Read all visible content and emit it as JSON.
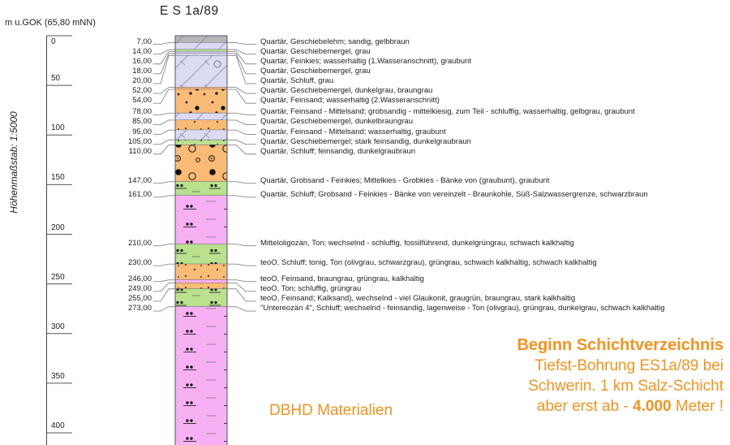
{
  "title": "E S 1a/89",
  "axis": {
    "top_label": "m u.GOK (65,80 mNN)",
    "scale_label": "Höhenmaßstab: 1:5000",
    "ticks": [
      "0",
      "50",
      "100",
      "150",
      "200",
      "250",
      "300",
      "350",
      "400"
    ],
    "tick_interval_m": 50
  },
  "colors": {
    "accent": "#F5921E",
    "gray": "#b6b6b6",
    "lavender": "#dbdbf2",
    "green": "#b9e18e",
    "orange": "#f9bb76",
    "pink": "#f8b0f4",
    "line": "#55556a",
    "leader": "#888888"
  },
  "column": {
    "layers": [
      {
        "from": 0,
        "to": 7,
        "depth_label": "7,00",
        "color": "gray",
        "pattern": "diagGray",
        "description": "Quartär, Geschiebelehm; sandig, gelbbraun"
      },
      {
        "from": 7,
        "to": 14,
        "depth_label": "14,00",
        "color": "lavender",
        "pattern": "diagLav",
        "description": "Quartär, Geschiebemergel, grau"
      },
      {
        "from": 14,
        "to": 16,
        "depth_label": "16,00",
        "color": "green",
        "pattern": "",
        "description": "Quartär, Feinkies; wasserhaltig (1.Wasseranschnitt), graubunt"
      },
      {
        "from": 16,
        "to": 18,
        "depth_label": "18,00",
        "color": "lavender",
        "pattern": "",
        "description": "Quartär, Geschiebemergel, grau"
      },
      {
        "from": 18,
        "to": 20,
        "depth_label": "20,00",
        "color": "lavender",
        "pattern": "",
        "description": "Quartär, Schluff, grau"
      },
      {
        "from": 20,
        "to": 52,
        "depth_label": "52,00",
        "color": "lavender",
        "pattern": "diagLav",
        "description": "Quartär, Geschiebemergel, dunkelgrau, braungrau"
      },
      {
        "from": 52,
        "to": 54,
        "depth_label": "54,00",
        "color": "orange",
        "pattern": "",
        "description": "Quartär, Feinsand; wasserhaltig (2.Wasseranschnitt)"
      },
      {
        "from": 54,
        "to": 78,
        "depth_label": "78,00",
        "color": "orange",
        "pattern": "dotsOrange",
        "description": "Quartär, Feinsand - Mittelsand; grobsandig - mittelkiesig, zum Teil - schluffig, wasserhaltig, gelbgrau, graubunt"
      },
      {
        "from": 78,
        "to": 85,
        "depth_label": "85,00",
        "color": "lavender",
        "pattern": "diagLav",
        "description": "Quartär, Geschiebemergel, dunkelbraungrau"
      },
      {
        "from": 85,
        "to": 95,
        "depth_label": "95,00",
        "color": "orange",
        "pattern": "dotsTiny",
        "description": "Quartär, Feinsand - Mittelsand; wasserhaltig, graubunt"
      },
      {
        "from": 95,
        "to": 105,
        "depth_label": "105,00",
        "color": "lavender",
        "pattern": "diagLav",
        "description": "Quartär, Geschiebemergel; stark feinsandig, dunkelgraubraun"
      },
      {
        "from": 105,
        "to": 110,
        "depth_label": "110,00",
        "color": "green",
        "pattern": "dotsTiny",
        "description": "Quartär, Schluff; feinsandig, dunkelgraubraun"
      },
      {
        "from": 110,
        "to": 147,
        "depth_label": "147,00",
        "color": "orange",
        "pattern": "circlesBig",
        "description": "Quartär, Grobsand - Feinkies; Mittelkies - Grobkies - Bänke von (graubunt), graubunt"
      },
      {
        "from": 147,
        "to": 161,
        "depth_label": "161,00",
        "color": "green",
        "pattern": "siltGreen",
        "description": "Quartär, Schluff; Grobsand - Feinkies - Bänke von vereinzelt - Braunkohle, Süß-Salzwassergrenze, schwarzbraun"
      },
      {
        "from": 161,
        "to": 210,
        "depth_label": "210,00",
        "color": "pink",
        "pattern": "clayPink",
        "description": "Mitteloligozän, Ton; wechselnd - schluffig, fossilführend, dunkelgrüngrau, schwach kalkhaltig"
      },
      {
        "from": 210,
        "to": 230,
        "depth_label": "230,00",
        "color": "green",
        "pattern": "siltGreen",
        "description": "teoO, Schluff; tonig, Ton (olivgrau, schwarzgrau), grüngrau, schwach kalkhaltig, schwach kalkhaltig"
      },
      {
        "from": 230,
        "to": 246,
        "depth_label": "246,00",
        "color": "orange",
        "pattern": "dotsTiny",
        "description": "teoO, Feinsand, braungrau, grüngrau, kalkhaltig"
      },
      {
        "from": 246,
        "to": 249,
        "depth_label": "249,00",
        "color": "pink",
        "pattern": "",
        "description": "teoO, Ton; schluffig, grüngrau"
      },
      {
        "from": 249,
        "to": 255,
        "depth_label": "255,00",
        "color": "orange",
        "pattern": "dotsTiny",
        "description": "teoO, Feinsand; Kalksand), wechselnd - viel Glaukonit, graugrün, braungrau, stark kalkhaltig"
      },
      {
        "from": 255,
        "to": 273,
        "depth_label": "273,00",
        "color": "green",
        "pattern": "siltGreen",
        "description": "\"Untereozän 4\", Schluff; wechselnd - feinsandig, lagenweise - Ton (olivgrau), grüngrau, dunkelgrau, schwach kalkhaltig"
      },
      {
        "from": 273,
        "to": 420,
        "depth_label": "",
        "color": "pink",
        "pattern": "clayPink",
        "description": ""
      }
    ]
  },
  "annotations": {
    "dbhd_label": "DBHD Materialien",
    "note": {
      "line1": "Beginn Schichtverzeichnis",
      "line2": "Tiefst-Bohrung ES1a/89 bei",
      "line3": "Schwerin. 1 km Salz-Schicht",
      "line4_pre": "aber erst ab - ",
      "line4_bold": "4.000",
      "line4_post": " Meter !"
    }
  }
}
